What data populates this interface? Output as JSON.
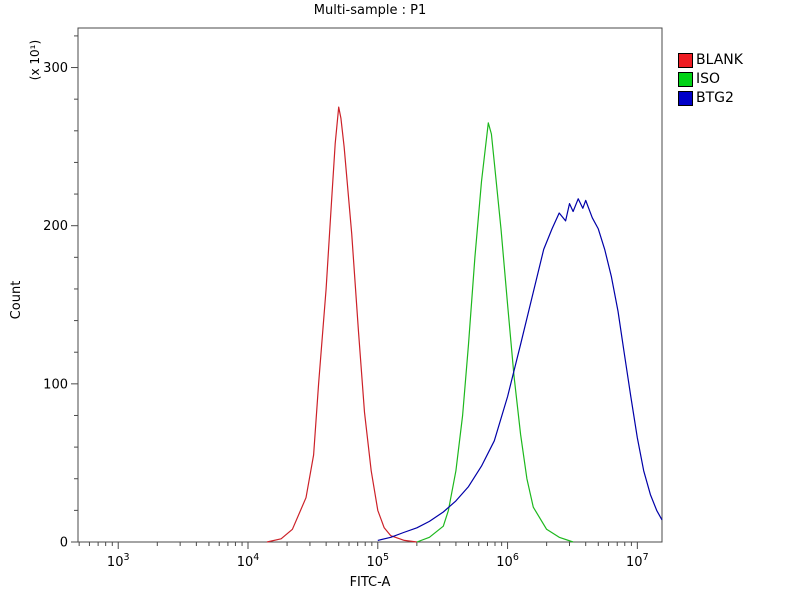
{
  "chart_data": {
    "type": "line",
    "title": "Multi-sample : P1",
    "xlabel": "FITC-A",
    "ylabel": "Count",
    "y_axis_multiplier": "(x 10¹)",
    "x_scale": "log10",
    "x_domain_log10": [
      2.69,
      7.19
    ],
    "ylim": [
      0,
      325
    ],
    "y_major_ticks": [
      0,
      100,
      200,
      300
    ],
    "y_minor_step": 20,
    "x_tick_base": "10",
    "x_major_tick_exponents": [
      3,
      4,
      5,
      6,
      7
    ],
    "frame_color": "#4a4a4a",
    "background": "#ffffff",
    "text_color": "#000000",
    "legend": {
      "position": "top-right",
      "entries": [
        {
          "label": "BLANK",
          "color": "#ee1c23"
        },
        {
          "label": "ISO",
          "color": "#00d215"
        },
        {
          "label": "BTG2",
          "color": "#0000c8"
        }
      ]
    },
    "series": [
      {
        "name": "BLANK",
        "color": "#cc2128",
        "points": [
          [
            14000.0,
            0
          ],
          [
            18000.0,
            2
          ],
          [
            22000.0,
            8
          ],
          [
            28000.0,
            28
          ],
          [
            32000.0,
            55
          ],
          [
            35000.0,
            100
          ],
          [
            40000.0,
            160
          ],
          [
            44000.0,
            215
          ],
          [
            47000.0,
            252
          ],
          [
            50000.0,
            275
          ],
          [
            52000.0,
            268
          ],
          [
            55000.0,
            250
          ],
          [
            63000.0,
            195
          ],
          [
            71000.0,
            133
          ],
          [
            79000.0,
            82
          ],
          [
            89000.0,
            45
          ],
          [
            100000.0,
            20
          ],
          [
            112000.0,
            9
          ],
          [
            126000.0,
            4
          ],
          [
            160000.0,
            1
          ],
          [
            200000.0,
            0
          ]
        ]
      },
      {
        "name": "ISO",
        "color": "#1db81d",
        "points": [
          [
            200000.0,
            0
          ],
          [
            250000.0,
            3
          ],
          [
            320000.0,
            10
          ],
          [
            350000.0,
            20
          ],
          [
            400000.0,
            45
          ],
          [
            450000.0,
            80
          ],
          [
            500000.0,
            125
          ],
          [
            560000.0,
            180
          ],
          [
            630000.0,
            228
          ],
          [
            710000.0,
            265
          ],
          [
            750000.0,
            258
          ],
          [
            790000.0,
            240
          ],
          [
            890000.0,
            198
          ],
          [
            1000000.0,
            150
          ],
          [
            1120000.0,
            105
          ],
          [
            1260000.0,
            68
          ],
          [
            1410000.0,
            40
          ],
          [
            1580000.0,
            22
          ],
          [
            2000000.0,
            8
          ],
          [
            2500000.0,
            3
          ],
          [
            3200000.0,
            0
          ]
        ]
      },
      {
        "name": "BTG2",
        "color": "#0000a8",
        "points": [
          [
            100000.0,
            1
          ],
          [
            126000.0,
            3
          ],
          [
            158000.0,
            6
          ],
          [
            200000.0,
            9
          ],
          [
            250000.0,
            13
          ],
          [
            320000.0,
            19
          ],
          [
            400000.0,
            26
          ],
          [
            500000.0,
            35
          ],
          [
            630000.0,
            48
          ],
          [
            790000.0,
            64
          ],
          [
            1000000.0,
            92
          ],
          [
            1260000.0,
            125
          ],
          [
            1580000.0,
            158
          ],
          [
            1900000.0,
            185
          ],
          [
            2200000.0,
            198
          ],
          [
            2500000.0,
            208
          ],
          [
            2800000.0,
            203
          ],
          [
            3000000.0,
            214
          ],
          [
            3200000.0,
            209
          ],
          [
            3500000.0,
            217
          ],
          [
            3800000.0,
            211
          ],
          [
            4000000.0,
            216
          ],
          [
            4500000.0,
            205
          ],
          [
            5000000.0,
            198
          ],
          [
            5600000.0,
            185
          ],
          [
            6300000.0,
            168
          ],
          [
            7100000.0,
            146
          ],
          [
            7900000.0,
            120
          ],
          [
            8900000.0,
            92
          ],
          [
            10000000.0,
            66
          ],
          [
            11200000.0,
            45
          ],
          [
            12600000.0,
            30
          ],
          [
            14100000.0,
            20
          ],
          [
            15500000.0,
            14
          ]
        ]
      }
    ]
  }
}
